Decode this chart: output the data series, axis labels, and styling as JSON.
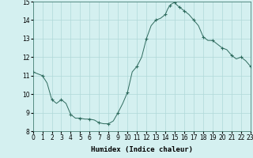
{
  "x": [
    0,
    0.5,
    1,
    1.5,
    2,
    2.5,
    3,
    3.5,
    4,
    4.5,
    5,
    5.5,
    6,
    6.5,
    7,
    7.5,
    8,
    8.5,
    9,
    9.5,
    10,
    10.5,
    11,
    11.5,
    12,
    12.5,
    13,
    13.5,
    14,
    14.25,
    14.5,
    14.75,
    15,
    15.25,
    15.5,
    16,
    16.5,
    17,
    17.5,
    18,
    18.5,
    19,
    19.5,
    20,
    20.5,
    21,
    21.5,
    22,
    22.5,
    23
  ],
  "y": [
    11.2,
    11.1,
    11.0,
    10.6,
    9.7,
    9.5,
    9.7,
    9.5,
    8.9,
    8.7,
    8.7,
    8.65,
    8.65,
    8.6,
    8.45,
    8.4,
    8.4,
    8.55,
    9.0,
    9.5,
    10.1,
    11.2,
    11.5,
    12.0,
    13.0,
    13.7,
    14.0,
    14.1,
    14.3,
    14.6,
    14.8,
    14.9,
    14.95,
    14.8,
    14.7,
    14.5,
    14.3,
    14.0,
    13.7,
    13.1,
    12.9,
    12.9,
    12.7,
    12.5,
    12.4,
    12.1,
    11.9,
    12.0,
    11.8,
    11.5
  ],
  "marker_x": [
    0,
    1,
    2,
    3,
    4,
    5,
    6,
    7,
    8,
    9,
    10,
    11,
    12,
    13,
    14,
    14.5,
    15,
    15.5,
    16,
    17,
    18,
    19,
    20,
    21,
    22,
    23
  ],
  "marker_y": [
    11.2,
    11.0,
    9.7,
    9.7,
    8.9,
    8.7,
    8.65,
    8.45,
    8.4,
    9.0,
    10.1,
    11.5,
    13.0,
    14.0,
    14.3,
    14.8,
    14.95,
    14.7,
    14.5,
    14.0,
    13.1,
    12.9,
    12.5,
    12.1,
    12.0,
    11.5
  ],
  "line_color": "#2e6b5e",
  "bg_color": "#d4f0f0",
  "grid_color": "#b0d8d8",
  "xlabel": "Humidex (Indice chaleur)",
  "xlim": [
    0,
    23
  ],
  "ylim": [
    8,
    15
  ],
  "xticks": [
    0,
    1,
    2,
    3,
    4,
    5,
    6,
    7,
    8,
    9,
    10,
    11,
    12,
    13,
    14,
    15,
    16,
    17,
    18,
    19,
    20,
    21,
    22,
    23
  ],
  "yticks": [
    8,
    9,
    10,
    11,
    12,
    13,
    14,
    15
  ],
  "label_fontsize": 6.5,
  "tick_fontsize": 5.5
}
